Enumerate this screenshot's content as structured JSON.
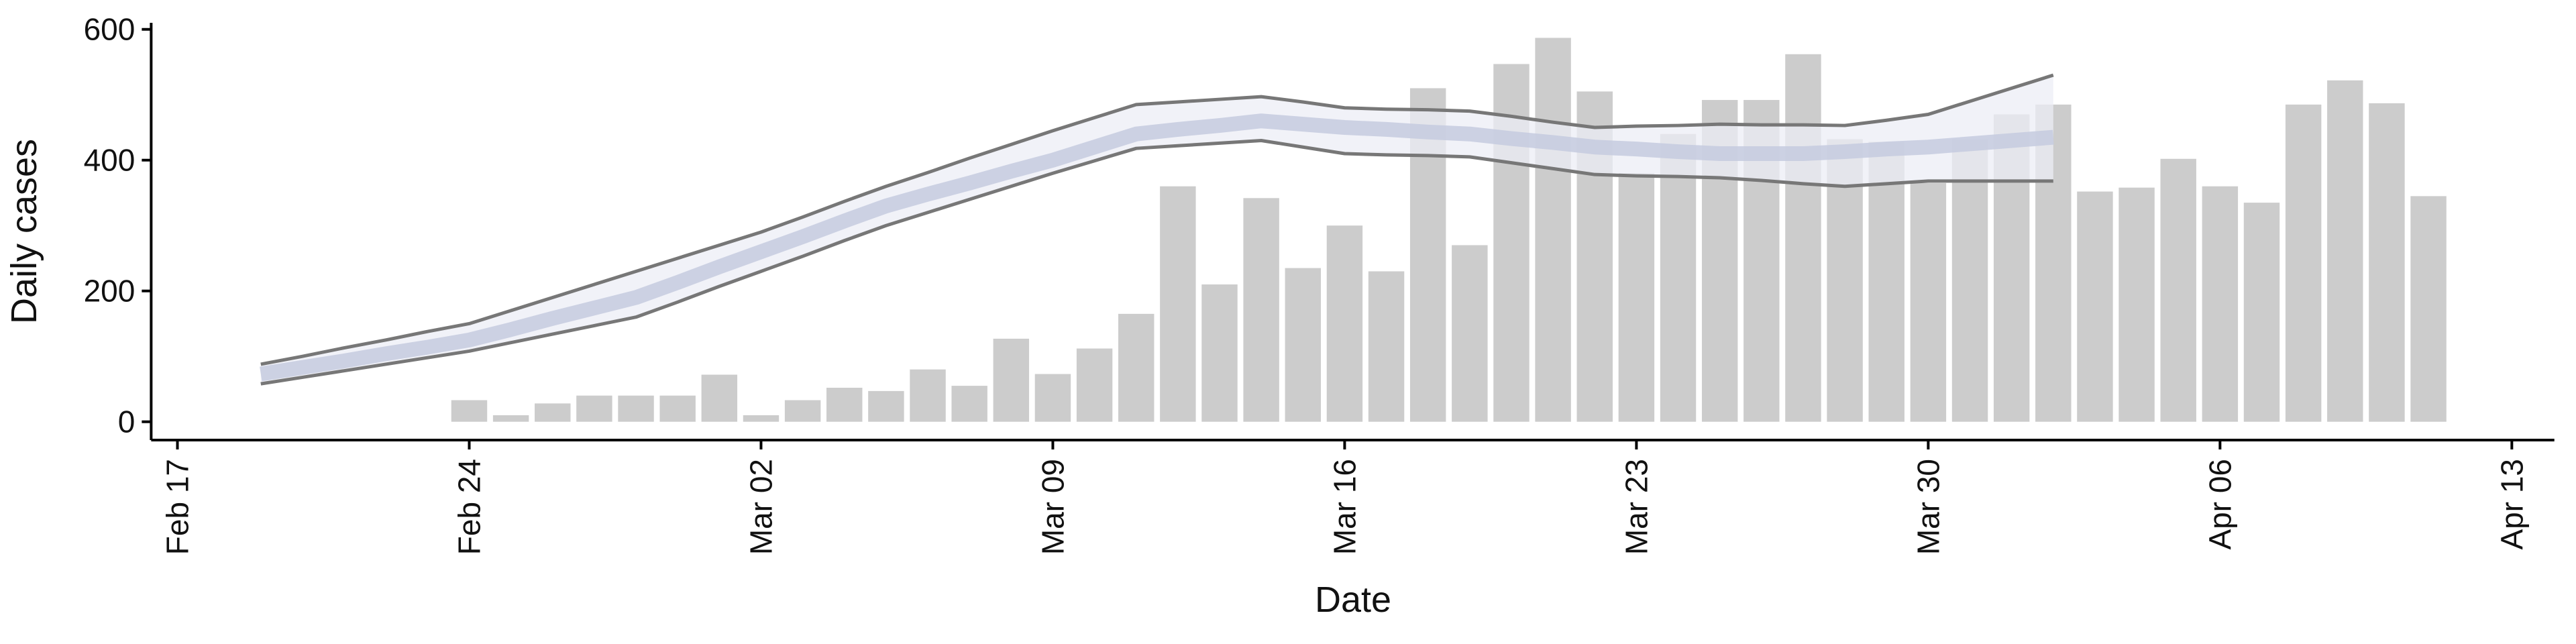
{
  "chart_data": {
    "type": "bar",
    "x_label": "Date",
    "y_label": "Daily cases",
    "x": [
      "Feb 17",
      "Feb 18",
      "Feb 19",
      "Feb 20",
      "Feb 21",
      "Feb 22",
      "Feb 23",
      "Feb 24",
      "Feb 25",
      "Feb 26",
      "Feb 27",
      "Feb 28",
      "Feb 29",
      "Mar 01",
      "Mar 02",
      "Mar 03",
      "Mar 04",
      "Mar 05",
      "Mar 06",
      "Mar 07",
      "Mar 08",
      "Mar 09",
      "Mar 10",
      "Mar 11",
      "Mar 12",
      "Mar 13",
      "Mar 14",
      "Mar 15",
      "Mar 16",
      "Mar 17",
      "Mar 18",
      "Mar 19",
      "Mar 20",
      "Mar 21",
      "Mar 22",
      "Mar 23",
      "Mar 24",
      "Mar 25",
      "Mar 26",
      "Mar 27",
      "Mar 28",
      "Mar 29",
      "Mar 30",
      "Mar 31",
      "Apr 01",
      "Apr 02",
      "Apr 03",
      "Apr 04",
      "Apr 05",
      "Apr 06",
      "Apr 07",
      "Apr 08",
      "Apr 09",
      "Apr 10",
      "Apr 11",
      "Apr 12",
      "Apr 13"
    ],
    "values": [
      null,
      null,
      null,
      null,
      null,
      null,
      null,
      33,
      10,
      28,
      40,
      40,
      40,
      72,
      10,
      33,
      52,
      47,
      80,
      55,
      127,
      73,
      112,
      165,
      360,
      210,
      342,
      235,
      300,
      230,
      510,
      270,
      547,
      587,
      505,
      380,
      440,
      492,
      492,
      562,
      432,
      428,
      365,
      432,
      470,
      485,
      352,
      358,
      402,
      360,
      335,
      485,
      522,
      487,
      345,
      null,
      null
    ],
    "color": "#cccccc",
    "series": [
      {
        "color": "#777777",
        "values": [
          null,
          null,
          88,
          100,
          113,
          125,
          138,
          150,
          170,
          190,
          210,
          230,
          250,
          270,
          290,
          313,
          337,
          360,
          381,
          403,
          424,
          445,
          465,
          485,
          489,
          493,
          497,
          489,
          480,
          478,
          477,
          475,
          467,
          458,
          450,
          452,
          453,
          455,
          454,
          454,
          453,
          461,
          470,
          490,
          510,
          530,
          null,
          null,
          null,
          null,
          null,
          null,
          null,
          null,
          null,
          null,
          null
        ]
      },
      {
        "color": "#777777",
        "values": [
          null,
          null,
          58,
          68,
          78,
          88,
          98,
          108,
          121,
          134,
          147,
          160,
          183,
          207,
          230,
          253,
          277,
          300,
          320,
          340,
          360,
          380,
          399,
          418,
          422,
          426,
          430,
          420,
          410,
          408,
          407,
          405,
          396,
          387,
          378,
          376,
          375,
          373,
          369,
          364,
          360,
          364,
          368,
          368,
          368,
          368,
          null,
          null,
          null,
          null,
          null,
          null,
          null,
          null,
          null,
          null,
          null
        ]
      },
      {
        "color": "#c5cbdf",
        "values": [
          null,
          null,
          73,
          83,
          93,
          104,
          114,
          125,
          141,
          158,
          174,
          190,
          213,
          237,
          260,
          283,
          307,
          330,
          348,
          365,
          383,
          400,
          420,
          440,
          447,
          453,
          460,
          455,
          450,
          447,
          443,
          440,
          433,
          427,
          420,
          417,
          413,
          410,
          410,
          410,
          413,
          417,
          420,
          425,
          430,
          435,
          null,
          null,
          null,
          null,
          null,
          null,
          null,
          null,
          null,
          null,
          null
        ]
      }
    ],
    "band_color": "#eceef5",
    "xticks": [
      "Feb 17",
      "Feb 24",
      "Mar 02",
      "Mar 09",
      "Mar 16",
      "Mar 23",
      "Mar 30",
      "Apr 06",
      "Apr 13"
    ],
    "ylim": [
      -28,
      610
    ],
    "yticks": [
      0,
      200,
      400,
      600
    ],
    "grid": false
  }
}
